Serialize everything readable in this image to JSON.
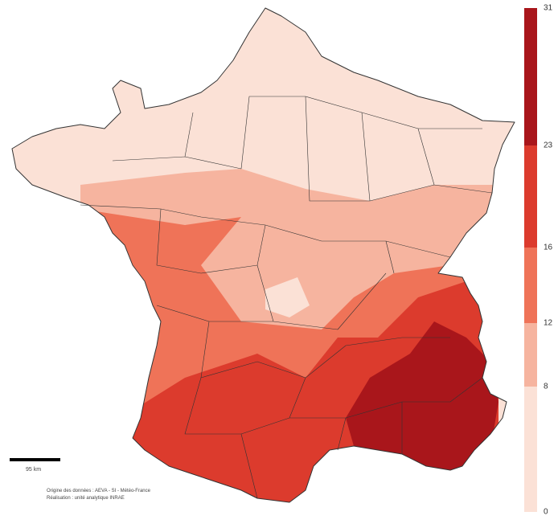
{
  "legend": {
    "ticks": [
      0,
      8,
      12,
      16,
      23,
      31
    ],
    "colors": [
      "#fbe1d6",
      "#f6b49f",
      "#ef7358",
      "#dc3b2d",
      "#a9161b"
    ]
  },
  "scale_bar": {
    "label": "95 km"
  },
  "source": [
    "Origine des données : AEVA - SI - Météo-France",
    "Réalisation : unité analytique INRAE"
  ]
}
